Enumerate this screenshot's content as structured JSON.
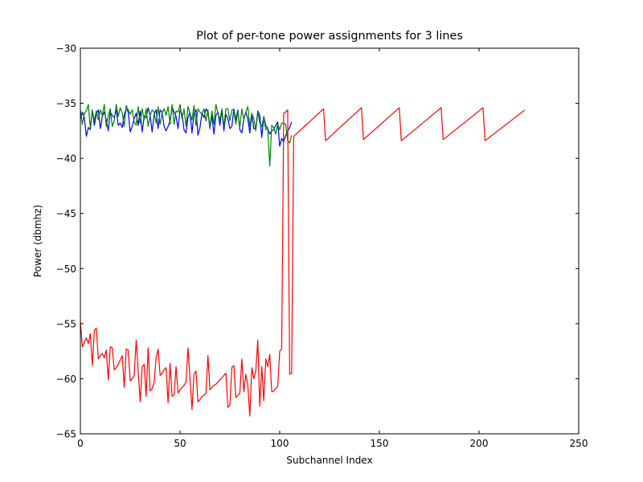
{
  "chart_data": {
    "type": "line",
    "title": "Plot of per-tone power assignments for 3 lines",
    "xlabel": "Subchannel Index",
    "ylabel": "Power (dbmhz)",
    "xlim": [
      0,
      250
    ],
    "ylim": [
      -65,
      -30
    ],
    "xticks": [
      0,
      50,
      100,
      150,
      200,
      250
    ],
    "yticks": [
      -65,
      -60,
      -55,
      -50,
      -45,
      -40,
      -35,
      -30
    ],
    "grid": false,
    "legend": "none",
    "series": [
      {
        "color": "#0000ff",
        "x": [
          0,
          1,
          2,
          3,
          4,
          5,
          6,
          7,
          8,
          9,
          10,
          11,
          12,
          13,
          14,
          15,
          16,
          17,
          18,
          19,
          20,
          21,
          22,
          23,
          24,
          25,
          26,
          27,
          28,
          29,
          30,
          31,
          32,
          33,
          34,
          35,
          36,
          37,
          38,
          39,
          40,
          41,
          42,
          43,
          44,
          45,
          46,
          47,
          48,
          49,
          50,
          51,
          52,
          53,
          54,
          55,
          56,
          57,
          58,
          59,
          60,
          61,
          62,
          63,
          64,
          65,
          66,
          67,
          68,
          69,
          70,
          71,
          72,
          73,
          74,
          75,
          76,
          77,
          78,
          79,
          80,
          81,
          82,
          83,
          84,
          85,
          86,
          87,
          88,
          89,
          90,
          91,
          92,
          93,
          94,
          95,
          96,
          97,
          98,
          99,
          100,
          101,
          102,
          103,
          104,
          105,
          106
        ],
        "y": [
          -36.4,
          -35.8,
          -36.3,
          -38.0,
          -37.2,
          -37.4,
          -35.6,
          -37.0,
          -36.0,
          -35.6,
          -37.3,
          -36.2,
          -35.8,
          -36.5,
          -37.5,
          -35.8,
          -36.1,
          -36.3,
          -35.6,
          -37.0,
          -36.8,
          -37.2,
          -36.0,
          -35.5,
          -35.8,
          -37.6,
          -37.1,
          -36.4,
          -35.9,
          -37.0,
          -35.7,
          -37.6,
          -36.2,
          -36.3,
          -35.4,
          -36.1,
          -37.6,
          -36.0,
          -35.6,
          -37.3,
          -35.6,
          -35.8,
          -37.1,
          -37.5,
          -37.1,
          -36.6,
          -35.3,
          -35.8,
          -36.2,
          -37.3,
          -35.6,
          -36.0,
          -37.4,
          -37.7,
          -36.3,
          -35.8,
          -37.7,
          -35.9,
          -35.6,
          -37.9,
          -37.2,
          -35.9,
          -36.3,
          -35.5,
          -35.8,
          -37.3,
          -36.1,
          -37.8,
          -36.1,
          -35.8,
          -37.0,
          -35.6,
          -37.5,
          -36.0,
          -36.4,
          -37.3,
          -37.1,
          -35.5,
          -36.5,
          -35.6,
          -37.4,
          -37.7,
          -36.4,
          -35.8,
          -36.4,
          -37.7,
          -36.0,
          -37.3,
          -37.3,
          -35.7,
          -36.1,
          -38.1,
          -36.2,
          -37.0,
          -37.3,
          -37.8,
          -37.5,
          -37.4,
          -37.0,
          -36.7,
          -38.9,
          -38.2,
          -38.5,
          -37.9,
          -37.5,
          -37.2,
          -36.7
        ]
      },
      {
        "color": "#008000",
        "x": [
          0,
          1,
          2,
          3,
          4,
          5,
          6,
          7,
          8,
          9,
          10,
          11,
          12,
          13,
          14,
          15,
          16,
          17,
          18,
          19,
          20,
          21,
          22,
          23,
          24,
          25,
          26,
          27,
          28,
          29,
          30,
          31,
          32,
          33,
          34,
          35,
          36,
          37,
          38,
          39,
          40,
          41,
          42,
          43,
          44,
          45,
          46,
          47,
          48,
          49,
          50,
          51,
          52,
          53,
          54,
          55,
          56,
          57,
          58,
          59,
          60,
          61,
          62,
          63,
          64,
          65,
          66,
          67,
          68,
          69,
          70,
          71,
          72,
          73,
          74,
          75,
          76,
          77,
          78,
          79,
          80,
          81,
          82,
          83,
          84,
          85,
          86,
          87,
          88,
          89,
          90,
          91,
          92,
          93,
          94,
          95,
          96,
          97,
          98,
          99,
          100,
          101,
          102,
          103,
          104,
          105,
          106
        ],
        "y": [
          -35.6,
          -36.9,
          -35.9,
          -35.7,
          -35.1,
          -37.3,
          -35.6,
          -36.6,
          -35.7,
          -36.5,
          -35.6,
          -36.1,
          -35.1,
          -37.1,
          -36.1,
          -35.5,
          -37.1,
          -36.6,
          -35.1,
          -36.2,
          -35.4,
          -35.9,
          -37.1,
          -35.2,
          -35.6,
          -36.0,
          -35.6,
          -36.7,
          -37.0,
          -35.3,
          -36.8,
          -35.5,
          -36.5,
          -35.5,
          -37.1,
          -36.1,
          -35.6,
          -35.8,
          -36.8,
          -35.3,
          -36.9,
          -35.9,
          -35.5,
          -36.1,
          -35.3,
          -36.9,
          -35.1,
          -36.9,
          -35.7,
          -35.8,
          -35.1,
          -36.4,
          -35.5,
          -37.1,
          -35.3,
          -35.9,
          -36.5,
          -35.2,
          -37.0,
          -35.5,
          -35.8,
          -36.0,
          -35.5,
          -36.6,
          -35.6,
          -37.2,
          -35.7,
          -36.9,
          -35.1,
          -35.9,
          -36.5,
          -35.5,
          -37.1,
          -35.5,
          -35.5,
          -36.6,
          -35.6,
          -35.6,
          -36.9,
          -35.7,
          -37.2,
          -35.5,
          -36.5,
          -35.8,
          -35.3,
          -37.1,
          -35.9,
          -36.4,
          -37.5,
          -35.8,
          -36.8,
          -37.1,
          -36.3,
          -37.4,
          -37.2,
          -40.7,
          -37.0,
          -37.2,
          -37.8,
          -36.9,
          -37.4,
          -36.8,
          -36.8,
          -36.9,
          -38.4,
          -38.6,
          -37.9
        ]
      },
      {
        "color": "#ff0000",
        "x": [
          0,
          1,
          2,
          3,
          4,
          5,
          6,
          7,
          8,
          9,
          10,
          11,
          12,
          13,
          14,
          15,
          16,
          17,
          18,
          19,
          20,
          21,
          22,
          23,
          24,
          25,
          26,
          27,
          28,
          29,
          30,
          31,
          32,
          33,
          34,
          35,
          36,
          37,
          38,
          39,
          40,
          41,
          42,
          43,
          44,
          45,
          46,
          47,
          48,
          49,
          50,
          51,
          52,
          53,
          54,
          55,
          56,
          57,
          58,
          59,
          60,
          61,
          62,
          63,
          64,
          65,
          66,
          67,
          68,
          69,
          70,
          71,
          72,
          73,
          74,
          75,
          76,
          77,
          78,
          79,
          80,
          81,
          82,
          83,
          84,
          85,
          86,
          87,
          88,
          89,
          90,
          91,
          92,
          93,
          94,
          95,
          96,
          97,
          98,
          99,
          100,
          101,
          102,
          103,
          104,
          105,
          106,
          107,
          122,
          123,
          141,
          142,
          160,
          161,
          181,
          182,
          202,
          203,
          223
        ],
        "y": [
          -54.8,
          -57.1,
          -56.7,
          -56.3,
          -56.8,
          -55.9,
          -58.8,
          -55.6,
          -55.4,
          -58.2,
          -57.9,
          -57.7,
          -58.1,
          -57.4,
          -60.1,
          -57.1,
          -57.2,
          -59.2,
          -59.0,
          -58.7,
          -58.3,
          -57.9,
          -60.8,
          -57.3,
          -57.4,
          -60.2,
          -60.0,
          -59.7,
          -56.5,
          -59.3,
          -62.1,
          -58.9,
          -58.7,
          -61.6,
          -57.2,
          -61.1,
          -60.9,
          -60.3,
          -58.1,
          -57.3,
          -59.7,
          -59.5,
          -59.2,
          -59.0,
          -62.2,
          -58.6,
          -61.6,
          -61.5,
          -58.9,
          -61.3,
          -61.0,
          -60.8,
          -60.6,
          -60.3,
          -57.2,
          -60.0,
          -62.8,
          -59.6,
          -59.3,
          -62.1,
          -61.9,
          -61.6,
          -61.5,
          -61.3,
          -57.9,
          -61.0,
          -60.8,
          -60.6,
          -60.5,
          -60.3,
          -60.1,
          -59.9,
          -59.7,
          -59.5,
          -62.6,
          -62.4,
          -59.0,
          -58.8,
          -61.7,
          -61.5,
          -61.3,
          -58.2,
          -61.2,
          -59.6,
          -60.6,
          -63.4,
          -59.0,
          -60.0,
          -59.3,
          -56.5,
          -62.5,
          -58.9,
          -62.0,
          -58.2,
          -58.9,
          -57.8,
          -61.2,
          -61.1,
          -60.9,
          -60.7,
          -57.5,
          -57.3,
          -35.9,
          -35.8,
          -35.6,
          -59.6,
          -59.5,
          -38.0,
          -35.5,
          -38.4,
          -35.4,
          -38.3,
          -35.4,
          -38.4,
          -35.4,
          -38.3,
          -35.4,
          -38.4,
          -35.6
        ]
      }
    ]
  }
}
